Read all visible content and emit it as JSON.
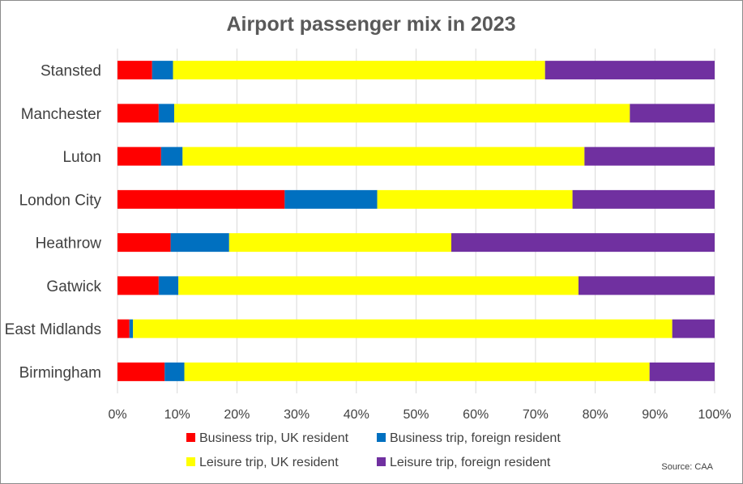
{
  "chart_data": {
    "type": "bar",
    "orientation": "horizontal",
    "stacked": true,
    "title": "Airport passenger mix in 2023",
    "categories": [
      "Stansted",
      "Manchester",
      "Luton",
      "London City",
      "Heathrow",
      "Gatwick",
      "East Midlands",
      "Birmingham"
    ],
    "series": [
      {
        "name": "Business trip, UK resident",
        "color": "#ff0000",
        "values": [
          5.8,
          6.9,
          7.3,
          28.0,
          8.9,
          6.9,
          2.0,
          7.9
        ]
      },
      {
        "name": "Business trip, foreign resident",
        "color": "#0070c0",
        "values": [
          3.5,
          2.6,
          3.6,
          15.5,
          9.8,
          3.3,
          0.6,
          3.3
        ]
      },
      {
        "name": "Leisure trip, UK resident",
        "color": "#ffff00",
        "values": [
          62.3,
          76.3,
          67.3,
          32.7,
          37.2,
          67.0,
          90.3,
          77.9
        ]
      },
      {
        "name": "Leisure trip, foreign resident",
        "color": "#7030a0",
        "values": [
          28.4,
          14.2,
          21.8,
          23.8,
          44.1,
          22.8,
          7.1,
          10.9
        ]
      }
    ],
    "xlim": [
      0,
      100
    ],
    "x_ticks": [
      "0%",
      "10%",
      "20%",
      "30%",
      "40%",
      "50%",
      "60%",
      "70%",
      "80%",
      "90%",
      "100%"
    ],
    "grid": true,
    "legend_position": "bottom",
    "source": "Source: CAA"
  }
}
